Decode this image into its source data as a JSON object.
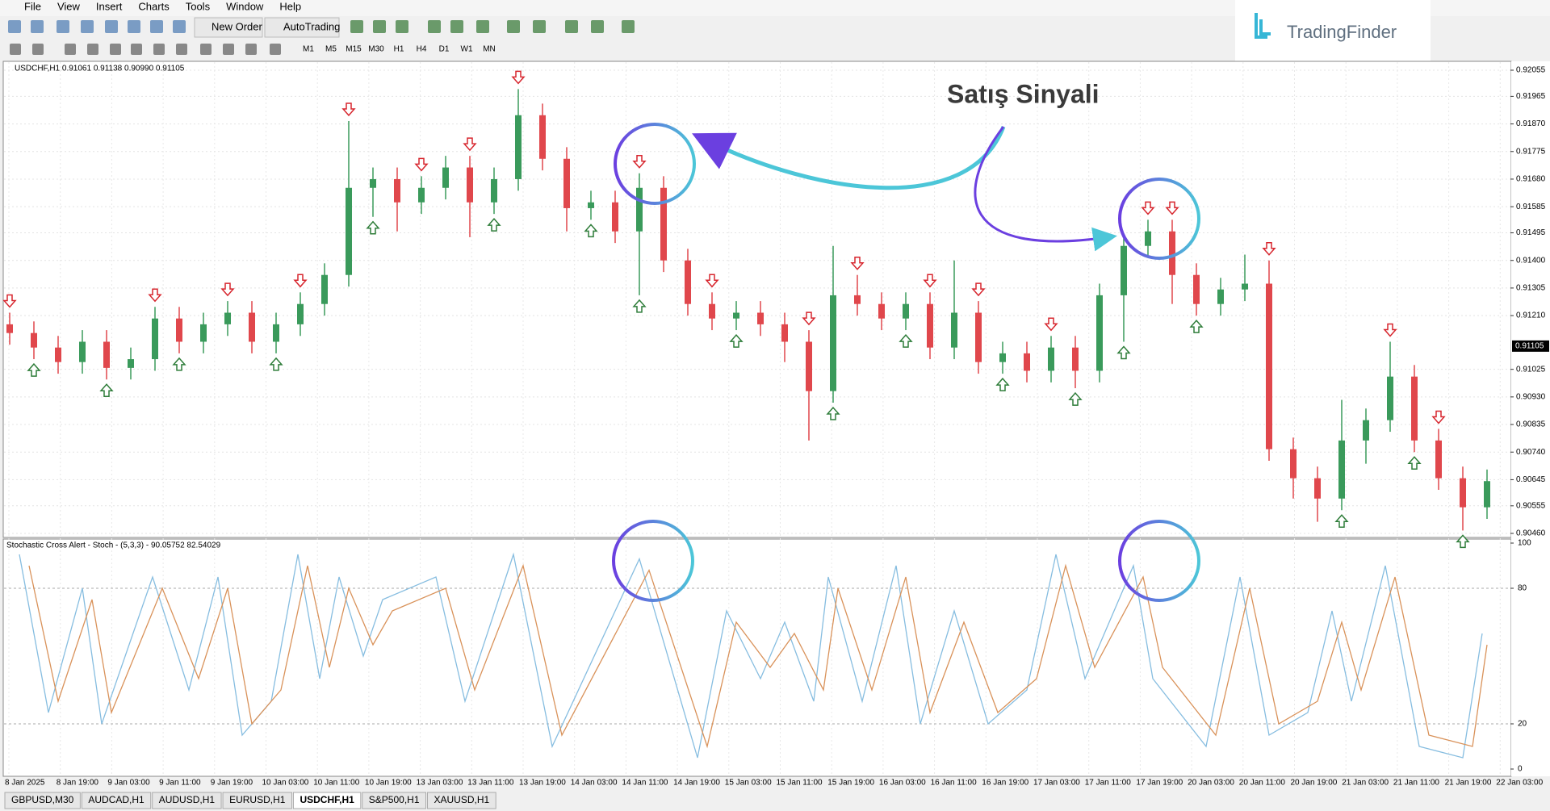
{
  "menu": [
    "File",
    "View",
    "Insert",
    "Charts",
    "Tools",
    "Window",
    "Help"
  ],
  "toolbar": {
    "new_order": "New Order",
    "auto_trading": "AutoTrading",
    "timeframes": [
      "M1",
      "M5",
      "M15",
      "M30",
      "H1",
      "H4",
      "D1",
      "W1",
      "MN"
    ]
  },
  "logo": "TradingFinder",
  "annotation": "Satış Sinyali",
  "chart": {
    "type": "candlestick",
    "header": "USDCHF,H1  0.91061 0.91138 0.90990 0.91105",
    "ylim": [
      0.9046,
      0.92055
    ],
    "yticks": [
      0.92055,
      0.91965,
      {
        "value": 0.9187,
        "label": "0.91870"
      },
      0.91775,
      {
        "value": 0.9168,
        "label": "0.91680"
      },
      0.91585,
      0.91495,
      {
        "value": 0.914,
        "label": "0.91400"
      },
      0.91305,
      {
        "value": 0.9121,
        "label": "0.91210"
      },
      0.91025,
      {
        "value": 0.9093,
        "label": "0.90930"
      },
      0.90835,
      {
        "value": 0.9074,
        "label": "0.90740"
      },
      0.90645,
      0.90555,
      {
        "value": 0.9046,
        "label": "0.90460"
      }
    ],
    "current_price": {
      "value": 0.91105,
      "label": "0.91105"
    },
    "candles": [
      [
        0.9118,
        0.9122,
        0.9111,
        0.9115
      ],
      [
        0.9115,
        0.9119,
        0.9106,
        0.911
      ],
      [
        0.911,
        0.9114,
        0.9101,
        0.9105
      ],
      [
        0.9105,
        0.9116,
        0.9101,
        0.9112
      ],
      [
        0.9112,
        0.9116,
        0.9099,
        0.9103
      ],
      [
        0.9103,
        0.911,
        0.9099,
        0.9106
      ],
      [
        0.9106,
        0.9124,
        0.9102,
        0.912
      ],
      [
        0.912,
        0.9124,
        0.9108,
        0.9112
      ],
      [
        0.9112,
        0.9122,
        0.9108,
        0.9118
      ],
      [
        0.9118,
        0.9126,
        0.9114,
        0.9122
      ],
      [
        0.9122,
        0.9126,
        0.9108,
        0.9112
      ],
      [
        0.9112,
        0.9122,
        0.9108,
        0.9118
      ],
      [
        0.9118,
        0.9129,
        0.9114,
        0.9125
      ],
      [
        0.9125,
        0.9139,
        0.9121,
        0.9135
      ],
      [
        0.9135,
        0.9188,
        0.9131,
        0.9165
      ],
      [
        0.9165,
        0.9172,
        0.9155,
        0.9168
      ],
      [
        0.9168,
        0.9172,
        0.915,
        0.916
      ],
      [
        0.916,
        0.9169,
        0.9156,
        0.9165
      ],
      [
        0.9165,
        0.9176,
        0.9161,
        0.9172
      ],
      [
        0.9172,
        0.9176,
        0.9148,
        0.916
      ],
      [
        0.916,
        0.9172,
        0.9156,
        0.9168
      ],
      [
        0.9168,
        0.9199,
        0.9164,
        0.919
      ],
      [
        0.919,
        0.9194,
        0.9171,
        0.9175
      ],
      [
        0.9175,
        0.9179,
        0.915,
        0.9158
      ],
      [
        0.9158,
        0.9164,
        0.9154,
        0.916
      ],
      [
        0.916,
        0.9164,
        0.9146,
        0.915
      ],
      [
        0.915,
        0.917,
        0.9128,
        0.9165
      ],
      [
        0.9165,
        0.9169,
        0.9136,
        0.914
      ],
      [
        0.914,
        0.9144,
        0.9121,
        0.9125
      ],
      [
        0.9125,
        0.9129,
        0.9116,
        0.912
      ],
      [
        0.912,
        0.9126,
        0.9116,
        0.9122
      ],
      [
        0.9122,
        0.9126,
        0.9114,
        0.9118
      ],
      [
        0.9118,
        0.9122,
        0.9105,
        0.9112
      ],
      [
        0.9112,
        0.9116,
        0.9078,
        0.9095
      ],
      [
        0.9095,
        0.9145,
        0.9091,
        0.9128
      ],
      [
        0.9128,
        0.9135,
        0.9121,
        0.9125
      ],
      [
        0.9125,
        0.9129,
        0.9116,
        0.912
      ],
      [
        0.912,
        0.9129,
        0.9116,
        0.9125
      ],
      [
        0.9125,
        0.9129,
        0.9106,
        0.911
      ],
      [
        0.911,
        0.914,
        0.9106,
        0.9122
      ],
      [
        0.9122,
        0.9126,
        0.9101,
        0.9105
      ],
      [
        0.9105,
        0.9112,
        0.9101,
        0.9108
      ],
      [
        0.9108,
        0.9112,
        0.9098,
        0.9102
      ],
      [
        0.9102,
        0.9114,
        0.9098,
        0.911
      ],
      [
        0.911,
        0.9114,
        0.9096,
        0.9102
      ],
      [
        0.9102,
        0.9132,
        0.9098,
        0.9128
      ],
      [
        0.9128,
        0.9149,
        0.9112,
        0.9145
      ],
      [
        0.9145,
        0.9154,
        0.9141,
        0.915
      ],
      [
        0.915,
        0.9154,
        0.9125,
        0.9135
      ],
      [
        0.9135,
        0.9139,
        0.9121,
        0.9125
      ],
      [
        0.9125,
        0.9134,
        0.9121,
        0.913
      ],
      [
        0.913,
        0.9142,
        0.9126,
        0.9132
      ],
      [
        0.9132,
        0.914,
        0.9071,
        0.9075
      ],
      [
        0.9075,
        0.9079,
        0.9058,
        0.9065
      ],
      [
        0.9065,
        0.9069,
        0.905,
        0.9058
      ],
      [
        0.9058,
        0.9092,
        0.9054,
        0.9078
      ],
      [
        0.9078,
        0.9089,
        0.907,
        0.9085
      ],
      [
        0.9085,
        0.9112,
        0.9081,
        0.91
      ],
      [
        0.91,
        0.9104,
        0.9074,
        0.9078
      ],
      [
        0.9078,
        0.9082,
        0.9061,
        0.9065
      ],
      [
        0.9065,
        0.9069,
        0.9047,
        0.9055
      ],
      [
        0.9055,
        0.9068,
        0.9051,
        0.9064
      ]
    ],
    "up_color": "#3a9a5b",
    "down_color": "#e0474c",
    "sell_signals": [
      0,
      6,
      9,
      12,
      14,
      17,
      19,
      21,
      26,
      29,
      33,
      35,
      38,
      40,
      43,
      47,
      48,
      52,
      57,
      59
    ],
    "buy_signals": [
      1,
      4,
      7,
      11,
      15,
      20,
      24,
      26,
      30,
      34,
      37,
      41,
      44,
      46,
      49,
      55,
      58,
      60
    ],
    "time_labels": [
      "8 Jan 2025",
      "8 Jan 19:00",
      "9 Jan 03:00",
      "9 Jan 11:00",
      "9 Jan 19:00",
      "10 Jan 03:00",
      "10 Jan 11:00",
      "10 Jan 19:00",
      "13 Jan 03:00",
      "13 Jan 11:00",
      "13 Jan 19:00",
      "14 Jan 03:00",
      "14 Jan 11:00",
      "14 Jan 19:00",
      "15 Jan 03:00",
      "15 Jan 11:00",
      "15 Jan 19:00",
      "16 Jan 03:00",
      "16 Jan 11:00",
      "16 Jan 19:00",
      "17 Jan 03:00",
      "17 Jan 11:00",
      "17 Jan 19:00",
      "20 Jan 03:00",
      "20 Jan 11:00",
      "20 Jan 19:00",
      "21 Jan 03:00",
      "21 Jan 11:00",
      "21 Jan 19:00",
      "22 Jan 03:00"
    ]
  },
  "indicator": {
    "type": "line",
    "label": "Stochastic Cross Alert - Stoch - (5,3,3) - 90.05752 82.54029",
    "ylim": [
      0,
      100
    ],
    "yticks": [
      100,
      80,
      20,
      0
    ],
    "series": [
      {
        "color": "#86bde0",
        "x": [
          0.4,
          1.6,
          3,
          3.8,
          5.9,
          7.4,
          8.6,
          9.6,
          10.8,
          11.9,
          12.8,
          13.6,
          14.6,
          15.4,
          17.6,
          18.8,
          20.8,
          22.4,
          26,
          28.4,
          29.6,
          31,
          32,
          33.2,
          33.8,
          35.2,
          36.6,
          37.6,
          39,
          40.4,
          42,
          43.2,
          44.4,
          46.4,
          47.2,
          49.4,
          50.8,
          52,
          53.6,
          54.6,
          55.4,
          56.8,
          58.2,
          60,
          60.8
        ],
        "values": [
          95,
          25,
          80,
          20,
          85,
          35,
          85,
          15,
          30,
          95,
          40,
          85,
          50,
          75,
          85,
          30,
          95,
          10,
          93,
          5,
          70,
          40,
          65,
          30,
          85,
          30,
          90,
          20,
          70,
          20,
          35,
          95,
          40,
          90,
          40,
          10,
          85,
          15,
          25,
          70,
          30,
          90,
          10,
          5,
          60
        ]
      },
      {
        "color": "#d9925a",
        "x": [
          0.8,
          2,
          3.4,
          4.2,
          6.3,
          7.8,
          9,
          10,
          11.2,
          12.3,
          13.2,
          14,
          15,
          15.8,
          18,
          19.2,
          21.2,
          22.8,
          26.4,
          28.8,
          30,
          31.4,
          32.4,
          33.6,
          34.2,
          35.6,
          37,
          38,
          39.4,
          40.8,
          42.4,
          43.6,
          44.8,
          46.8,
          47.6,
          49.8,
          51.2,
          52.4,
          54,
          55,
          55.8,
          57.2,
          58.6,
          60.4,
          61
        ],
        "values": [
          90,
          30,
          75,
          25,
          80,
          40,
          80,
          20,
          35,
          90,
          45,
          80,
          55,
          70,
          80,
          35,
          90,
          15,
          88,
          10,
          65,
          45,
          60,
          35,
          80,
          35,
          85,
          25,
          65,
          25,
          40,
          90,
          45,
          85,
          45,
          15,
          80,
          20,
          30,
          65,
          35,
          85,
          15,
          10,
          55
        ]
      }
    ]
  },
  "tabs": [
    "GBPUSD,M30",
    "AUDCAD,H1",
    "AUDUSD,H1",
    "EURUSD,H1",
    "USDCHF,H1",
    "S&P500,H1",
    "XAUUSD,H1"
  ],
  "active_tab": 4
}
